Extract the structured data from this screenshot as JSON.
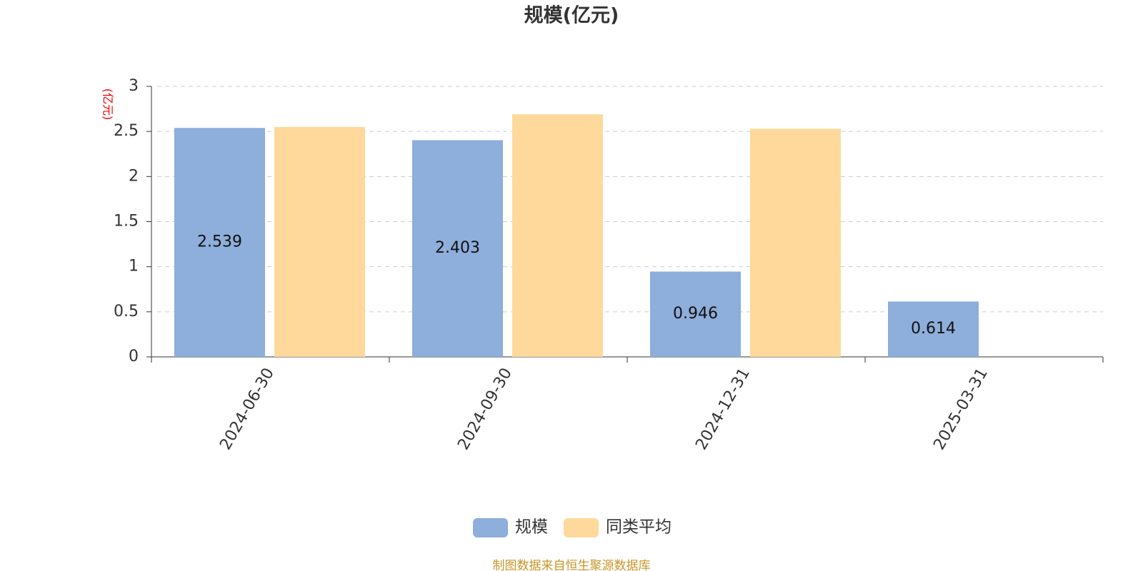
{
  "chart_data": {
    "type": "bar",
    "title": "规模(亿元)",
    "y_label": "(亿元)",
    "categories": [
      "2024-06-30",
      "2024-09-30",
      "2024-12-31",
      "2025-03-31"
    ],
    "series": [
      {
        "name": "规模",
        "color": "#8eaedb",
        "values": [
          2.539,
          2.403,
          0.946,
          0.614
        ],
        "show_labels": true
      },
      {
        "name": "同类平均",
        "color": "#fed99b",
        "values": [
          2.55,
          2.69,
          2.53,
          null
        ],
        "show_labels": false
      }
    ],
    "ylim": [
      0,
      3
    ],
    "yticks": [
      0,
      0.5,
      1,
      1.5,
      2,
      2.5,
      3
    ],
    "grid": true,
    "legend": "bottom",
    "source": "制图数据来自恒生聚源数据库"
  }
}
